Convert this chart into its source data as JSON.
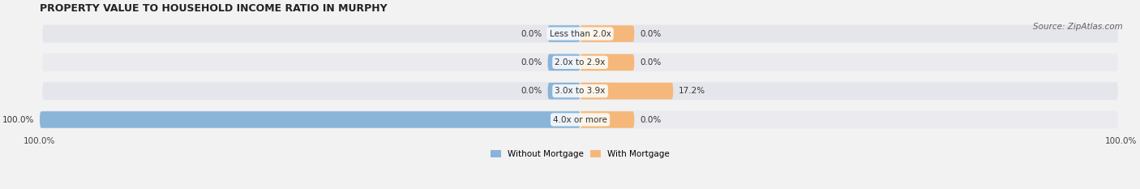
{
  "title": "PROPERTY VALUE TO HOUSEHOLD INCOME RATIO IN MURPHY",
  "source": "Source: ZipAtlas.com",
  "categories": [
    "Less than 2.0x",
    "2.0x to 2.9x",
    "3.0x to 3.9x",
    "4.0x or more"
  ],
  "without_mortgage": [
    0.0,
    0.0,
    0.0,
    100.0
  ],
  "with_mortgage": [
    0.0,
    0.0,
    17.2,
    0.0
  ],
  "color_without": "#8ab4d8",
  "color_with": "#f5b87a",
  "bg_color": "#f2f2f2",
  "bar_bg_color_even": "#e5e5ec",
  "bar_bg_color_odd": "#eaeaef",
  "bar_height": 0.62,
  "xlim": [
    -100,
    100
  ],
  "figsize": [
    14.06,
    2.33
  ],
  "dpi": 100,
  "legend_labels": [
    "Without Mortgage",
    "With Mortgage"
  ],
  "label_fontsize": 7.5,
  "title_fontsize": 9,
  "source_fontsize": 7.5
}
